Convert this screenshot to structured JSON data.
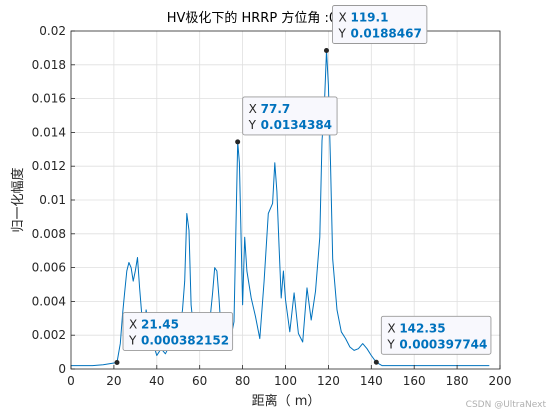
{
  "chart_data": {
    "type": "line",
    "title": "HV极化下的 HRRP   方位角 :0   俯仰角 :60",
    "xlabel": "距离（ m）",
    "ylabel": "归一化幅度",
    "xlim": [
      0,
      200
    ],
    "ylim": [
      0,
      0.02
    ],
    "xticks": [
      "0",
      "20",
      "40",
      "60",
      "80",
      "100",
      "120",
      "140",
      "160",
      "180",
      "200"
    ],
    "yticks": [
      "0",
      "0.002",
      "0.004",
      "0.006",
      "0.008",
      "0.01",
      "0.012",
      "0.014",
      "0.016",
      "0.018",
      "0.02"
    ],
    "grid": true,
    "line_color": "#0072bd",
    "series": [
      {
        "x": [
          0,
          5,
          10,
          15,
          21.45,
          22,
          23,
          24,
          25,
          26,
          27,
          28,
          29,
          30,
          31,
          32,
          33,
          34,
          35,
          36,
          37,
          38,
          39,
          40,
          42,
          44,
          46,
          48,
          50,
          52,
          53,
          54,
          55,
          56,
          57,
          58,
          60,
          62,
          64,
          66,
          67,
          68,
          69,
          70,
          72,
          74,
          76,
          77.7,
          78.5,
          80,
          81,
          82,
          84,
          86,
          88,
          90,
          92,
          94,
          95,
          96,
          97,
          98,
          99,
          100,
          102,
          104,
          106,
          108,
          110,
          112,
          114,
          116,
          117,
          118,
          119.1,
          120,
          121,
          122,
          124,
          126,
          128,
          130,
          132,
          134,
          136,
          138,
          140,
          142.35,
          145,
          150,
          160,
          170,
          180,
          190,
          195
        ],
        "y": [
          0.0002,
          0.0002,
          0.0002,
          0.00025,
          0.000382152,
          0.0008,
          0.0015,
          0.0032,
          0.0045,
          0.0058,
          0.0063,
          0.006,
          0.0052,
          0.0058,
          0.0066,
          0.0048,
          0.0032,
          0.0018,
          0.0035,
          0.0028,
          0.0015,
          0.0022,
          0.0012,
          0.0008,
          0.0012,
          0.0009,
          0.0014,
          0.0011,
          0.0018,
          0.0035,
          0.0052,
          0.0092,
          0.0082,
          0.0038,
          0.0025,
          0.0012,
          0.0016,
          0.0011,
          0.0019,
          0.0045,
          0.006,
          0.0058,
          0.0042,
          0.0022,
          0.0012,
          0.0015,
          0.0028,
          0.0134384,
          0.0122,
          0.0038,
          0.0078,
          0.0058,
          0.0042,
          0.0031,
          0.0018,
          0.0052,
          0.0092,
          0.0098,
          0.0122,
          0.0105,
          0.0072,
          0.0042,
          0.0058,
          0.0041,
          0.0022,
          0.0045,
          0.0021,
          0.0016,
          0.0048,
          0.0029,
          0.0046,
          0.0078,
          0.0135,
          0.0152,
          0.0188467,
          0.0168,
          0.0122,
          0.0065,
          0.0035,
          0.0022,
          0.0018,
          0.0013,
          0.0011,
          0.0012,
          0.0015,
          0.0012,
          0.0008,
          0.000397744,
          0.0002,
          0.0002,
          0.0002,
          0.0002,
          0.0002,
          0.0002,
          0.0002
        ]
      }
    ],
    "datatips": [
      {
        "x": 21.45,
        "y": 0.000382152,
        "x_label": "X",
        "x_text": "21.45",
        "y_label": "Y",
        "y_text": "0.000382152"
      },
      {
        "x": 77.7,
        "y": 0.0134384,
        "x_label": "X",
        "x_text": "77.7",
        "y_label": "Y",
        "y_text": "0.0134384"
      },
      {
        "x": 119.1,
        "y": 0.0188467,
        "x_label": "X",
        "x_text": "119.1",
        "y_label": "Y",
        "y_text": "0.0188467"
      },
      {
        "x": 142.35,
        "y": 0.000397744,
        "x_label": "X",
        "x_text": "142.35",
        "y_label": "Y",
        "y_text": "0.000397744"
      }
    ]
  },
  "watermark": "CSDN @UltraNext"
}
